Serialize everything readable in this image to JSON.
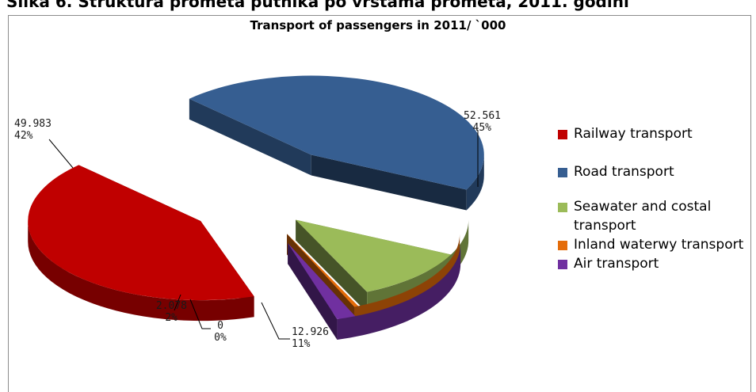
{
  "caption": "Slika 6. Struktura prometa putnika po vrstama prometa, 2011. godini",
  "chart_data": {
    "type": "pie",
    "title": "Transport of passengers in 2011/ `000",
    "legend_position": "right",
    "slices": [
      {
        "name": "Railway transport",
        "value": 49983,
        "label_value": "49.983",
        "label_percent": "42%",
        "color": "#c00000"
      },
      {
        "name": "Road transport",
        "value": 52561,
        "label_value": "52.561",
        "label_percent": "45%",
        "color": "#365e91"
      },
      {
        "name": "Seawater and costal transport",
        "value": 12926,
        "label_value": "12.926",
        "label_percent": "11%",
        "color": "#9bbb59"
      },
      {
        "name": "Inland waterwy transport",
        "value": 0,
        "label_value": "0",
        "label_percent": "0%",
        "color": "#e46c0a"
      },
      {
        "name": "Air transport",
        "value": 2078,
        "label_value": "2.078",
        "label_percent": "2%",
        "color": "#7030a0"
      }
    ]
  }
}
